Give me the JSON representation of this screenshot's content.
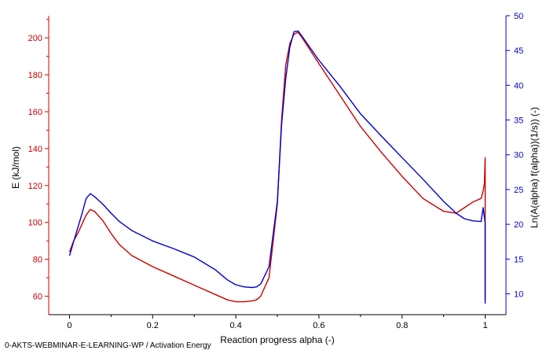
{
  "caption": "0-AKTS-WEBMINAR-E-LEARNING-WP / Activation Energy",
  "chart_data": {
    "type": "line",
    "title": "",
    "xlabel": "Reaction progress alpha (-)",
    "ylabel_left": "E (kJ/mol)",
    "ylabel_right": "Ln(A(alpha) f(alpha))(1/s)) (-)",
    "xlim": [
      -0.05,
      1.05
    ],
    "ylim_left": [
      50,
      212
    ],
    "ylim_right": [
      7,
      50
    ],
    "xticks": [
      "0",
      "0.2",
      "0.4",
      "0.6",
      "0.8",
      "1"
    ],
    "xtick_values": [
      0,
      0.2,
      0.4,
      0.6,
      0.8,
      1.0
    ],
    "yticks_left": [
      "60",
      "80",
      "100",
      "120",
      "140",
      "160",
      "180",
      "200"
    ],
    "ytick_values_left": [
      60,
      80,
      100,
      120,
      140,
      160,
      180,
      200
    ],
    "yticks_right": [
      "10",
      "15",
      "20",
      "25",
      "30",
      "35",
      "40",
      "45",
      "50"
    ],
    "ytick_values_right": [
      10,
      15,
      20,
      25,
      30,
      35,
      40,
      45,
      50
    ],
    "grid": false,
    "colors": {
      "left_axis": "#cc0000",
      "right_axis": "#0000cc",
      "axis": "#000000"
    },
    "series": [
      {
        "axis": "left",
        "color": "#cc0000",
        "x": [
          0.0,
          0.01,
          0.02,
          0.03,
          0.04,
          0.05,
          0.06,
          0.08,
          0.1,
          0.12,
          0.15,
          0.2,
          0.25,
          0.3,
          0.35,
          0.38,
          0.4,
          0.42,
          0.44,
          0.45,
          0.46,
          0.48,
          0.5,
          0.51,
          0.52,
          0.53,
          0.54,
          0.55,
          0.56,
          0.6,
          0.65,
          0.7,
          0.75,
          0.8,
          0.85,
          0.9,
          0.93,
          0.95,
          0.97,
          0.99,
          0.995,
          0.998,
          1.0,
          1.0,
          1.0
        ],
        "y": [
          84,
          90,
          94,
          99,
          104,
          107,
          106,
          101,
          94,
          88,
          82,
          76,
          71,
          66,
          61,
          58,
          57,
          57,
          57.5,
          58,
          60,
          70,
          110,
          155,
          185,
          197,
          202,
          203,
          200,
          186,
          169,
          152,
          138,
          125,
          113,
          106,
          105,
          108,
          111,
          113,
          117,
          121,
          135,
          90,
          58
        ]
      },
      {
        "axis": "right",
        "color": "#0000cc",
        "x": [
          0.0,
          0.01,
          0.02,
          0.03,
          0.04,
          0.05,
          0.06,
          0.08,
          0.1,
          0.12,
          0.15,
          0.2,
          0.25,
          0.3,
          0.35,
          0.38,
          0.4,
          0.42,
          0.44,
          0.45,
          0.46,
          0.48,
          0.5,
          0.51,
          0.52,
          0.53,
          0.54,
          0.55,
          0.56,
          0.6,
          0.65,
          0.7,
          0.75,
          0.8,
          0.85,
          0.9,
          0.93,
          0.95,
          0.97,
          0.99,
          0.995,
          0.998,
          1.0,
          1.0,
          1.0
        ],
        "y": [
          15.5,
          17.5,
          19.5,
          21.5,
          23.7,
          24.4,
          24.0,
          22.9,
          21.6,
          20.4,
          19.1,
          17.6,
          16.5,
          15.3,
          13.5,
          12.0,
          11.3,
          11.0,
          10.9,
          11.0,
          11.4,
          13.9,
          23.3,
          34.2,
          40.9,
          45.5,
          47.7,
          47.8,
          47.0,
          43.6,
          39.9,
          35.9,
          32.7,
          29.6,
          26.5,
          23.3,
          21.6,
          20.8,
          20.5,
          20.4,
          22.4,
          21.0,
          20.2,
          14.0,
          8.6
        ]
      }
    ]
  }
}
